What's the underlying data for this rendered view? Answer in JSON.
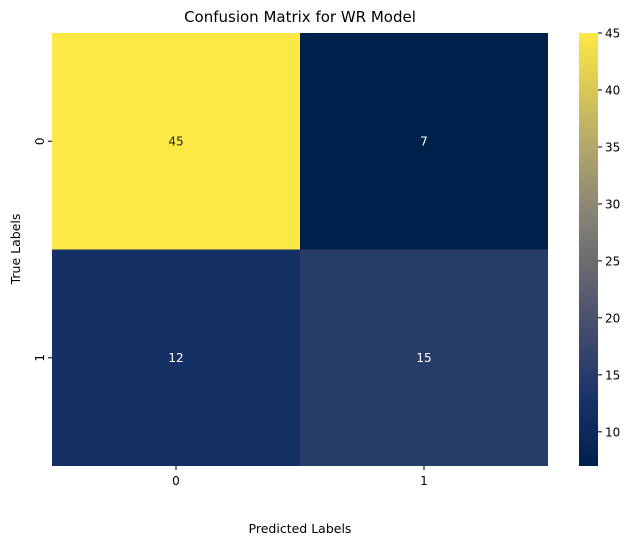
{
  "chart_data": {
    "type": "heatmap",
    "title": "Confusion Matrix for WR Model",
    "xlabel": "Predicted Labels",
    "ylabel": "True Labels",
    "x_categories": [
      "0",
      "1"
    ],
    "y_categories": [
      "0",
      "1"
    ],
    "values": [
      [
        45,
        7
      ],
      [
        12,
        15
      ]
    ],
    "colormap": "cividis",
    "colorbar": {
      "min": 7,
      "max": 45,
      "ticks": [
        10,
        15,
        20,
        25,
        30,
        35,
        40,
        45
      ]
    }
  }
}
